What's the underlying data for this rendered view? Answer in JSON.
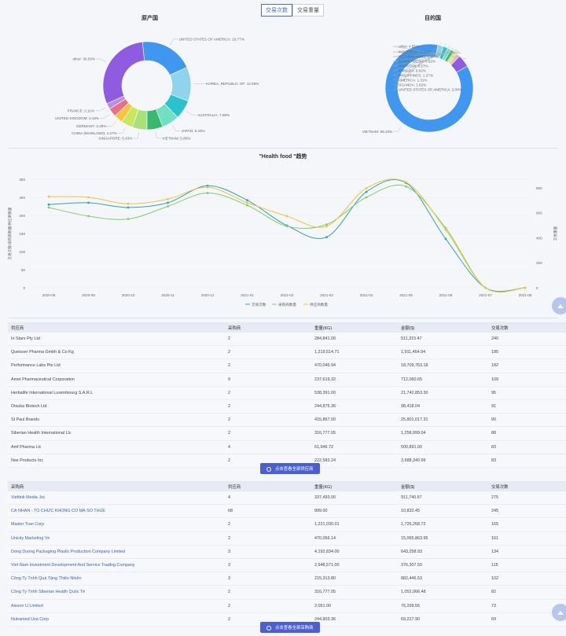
{
  "toggle": {
    "active_label": "交易次数",
    "inactive_label": "交易重量"
  },
  "donut_left": {
    "title": "原产国",
    "slices": [
      {
        "label": "UNITED STATES OF AMERICA: 19.77%",
        "value": 19.77,
        "color": "#3f97ef"
      },
      {
        "label": "KOREA, REPUBLIC OF: 12.56%",
        "value": 12.56,
        "color": "#8fd3ec"
      },
      {
        "label": "AUSTRALIA: 7.09%",
        "value": 7.09,
        "color": "#2bc2cf"
      },
      {
        "label": "JAPAN: 6.43%",
        "value": 6.43,
        "color": "#6fe0c4"
      },
      {
        "label": "VIETNAM: 5.85%",
        "value": 5.85,
        "color": "#38b96f"
      },
      {
        "label": "SINGAPORE: 5.43%",
        "value": 5.43,
        "color": "#a8e07a"
      },
      {
        "label": "CHINA (MAINLAND): 4.27%",
        "value": 4.27,
        "color": "#c8e65e"
      },
      {
        "label": "GERMANY: 3.28%",
        "value": 3.28,
        "color": "#f5c542"
      },
      {
        "label": "UNITED KINGDOM: 3.19%",
        "value": 3.19,
        "color": "#ec6d87"
      },
      {
        "label": "FRANCE: 2.11%",
        "value": 2.11,
        "color": "#b98fe2"
      },
      {
        "label": "other: 30.03%",
        "value": 30.03,
        "color": "#8f5be0"
      }
    ]
  },
  "donut_right": {
    "title": "目的国",
    "slices": [
      {
        "label": "VIETNAM: 86.33%",
        "value": 86.33,
        "color": "#3f97ef"
      },
      {
        "label": "UNITED STATES OF AMERICA: 2.06%",
        "value": 2.06,
        "color": "#8fd3ec"
      },
      {
        "label": "UGANDA: 1.62%",
        "value": 1.62,
        "color": "#2bc2cf"
      },
      {
        "label": "AMERICA: 1.31%",
        "value": 1.31,
        "color": "#6fe0c4"
      },
      {
        "label": "PHILIPPINES: 1.27%",
        "value": 1.27,
        "color": "#38b96f"
      },
      {
        "label": "CANADA: 0.62%",
        "value": 0.62,
        "color": "#a8e07a"
      },
      {
        "label": "PAKISTAN: 0.57%",
        "value": 0.57,
        "color": "#c8e65e"
      },
      {
        "label": "BANGLADESH: 0.52%",
        "value": 0.52,
        "color": "#f5c542"
      },
      {
        "label": "NETHERLANDS: 0.47%",
        "value": 0.47,
        "color": "#ec6d87"
      },
      {
        "label": "INDONESIA: 0.44%",
        "value": 0.44,
        "color": "#b98fe2"
      },
      {
        "label": "other: 4.55%",
        "value": 4.55,
        "color": "#8f5be0"
      }
    ]
  },
  "trend": {
    "title": "\"Health food \"趋势",
    "ylabel_left": "交易次数/采购商数量/供应商数量",
    "ylabel_right": "交易重量",
    "y_ticks_left": [
      "0",
      "50",
      "100",
      "150",
      "200",
      "250",
      "300"
    ],
    "y_ticks_right": [
      "0",
      "200",
      "400",
      "600",
      "800"
    ],
    "legend": [
      "交易次数",
      "采购商数量",
      "供应商数量"
    ]
  },
  "chart_data": {
    "type": "line",
    "title": "\"Health food \"趋势",
    "x": [
      "2020-08",
      "2020-09",
      "2020-10",
      "2020-11",
      "2020-12",
      "2021-01",
      "2021-02",
      "2021-03",
      "2021-04",
      "2021-05",
      "2021-06",
      "2021-07",
      "2021-08"
    ],
    "ylim": [
      0,
      300
    ],
    "series": [
      {
        "name": "交易次数",
        "color": "#2aa5b5",
        "values": [
          230,
          235,
          222,
          235,
          282,
          242,
          172,
          140,
          265,
          290,
          135,
          0,
          0
        ]
      },
      {
        "name": "采购商数量",
        "color": "#7ccf6a",
        "values": [
          222,
          198,
          190,
          225,
          262,
          228,
          170,
          175,
          250,
          280,
          165,
          0,
          0
        ]
      },
      {
        "name": "供应商数量",
        "color": "#f2c43b",
        "values": [
          252,
          250,
          232,
          245,
          278,
          235,
          198,
          170,
          275,
          292,
          160,
          0,
          0
        ]
      }
    ]
  },
  "suppliers": {
    "headers": [
      "供应商",
      "采购商",
      "重量(KG)",
      "金额($)",
      "交易次数"
    ],
    "rows": [
      [
        "In Stars Pty Ltd",
        "2",
        "284,841.00",
        "511,315.47",
        "240"
      ],
      [
        "Queisser Pharma Gmbh & Co Kg",
        "2",
        "1,219,514.71",
        "1,911,464.94",
        "185"
      ],
      [
        "Performance Labs Pte Ltd",
        "2",
        "470,046.94",
        "18,709,763.18",
        "182"
      ],
      [
        "Amet Pharmaceutical Corporation",
        "9",
        "237,619.32",
        "712,060.65",
        "109"
      ],
      [
        "Herbalife International Luxembourg S.A.R.L",
        "2",
        "538,391.00",
        "21,742,853.30",
        "95"
      ],
      [
        "Otsuka Biotech Ltd",
        "2",
        "244,875.36",
        "98,418.04",
        "91"
      ],
      [
        "St Paul Brands",
        "2",
        "415,867.00",
        "25,801,017.31",
        "90"
      ],
      [
        "Siberian Health International Llc",
        "2",
        "316,777.05",
        "1,258,999.04",
        "88"
      ],
      [
        "Amf Pharma Llc",
        "4",
        "61,946.72",
        "500,891.00",
        "83"
      ],
      [
        "Nse Products Inc",
        "2",
        "222,583.24",
        "3,588,340.99",
        "83"
      ]
    ],
    "button": "点击查看全部供应商"
  },
  "buyers": {
    "headers": [
      "采购商",
      "供应商",
      "重量(KG)",
      "金额($)",
      "交易次数"
    ],
    "rows": [
      [
        "Viettink Media Jsc",
        "4",
        "337,493.00",
        "911,740.67",
        "275"
      ],
      [
        "CÁ NHÂN - TỔ CHỨC KHÔNG CÓ MÃ SỐ THUẾ",
        "68",
        "999.00",
        "10,832.45",
        "245"
      ],
      [
        "Master Tran Corp",
        "2",
        "1,221,030.01",
        "1,726,268.72",
        "165"
      ],
      [
        "Unicity Marketing Vn",
        "2",
        "470,056.14",
        "15,065,863.95",
        "161"
      ],
      [
        "Dong Duong Packaging Plastic Production Company Limited",
        "3",
        "4,192,834.00",
        "643,258.93",
        "134"
      ],
      [
        "Viet Nam Investment Development And Service Trading Company",
        "3",
        "2,948,571.00",
        "376,307.50",
        "115"
      ],
      [
        "Công Ty Tnhh Quà Tặng Thiên Nhiên",
        "3",
        "215,313.80",
        "882,446.53",
        "102"
      ],
      [
        "Công Ty Tnhh Siberian Health Quốc Tế",
        "2",
        "316,777.05",
        "1,052,066.48",
        "82"
      ],
      [
        "Aiseen U Limited",
        "2",
        "2,051.00",
        "76,209.56",
        "73"
      ],
      [
        "Nutramed Usa Corp",
        "2",
        "244,903.36",
        "69,227.90",
        "69"
      ]
    ],
    "button": "点击查看全部采购商"
  }
}
